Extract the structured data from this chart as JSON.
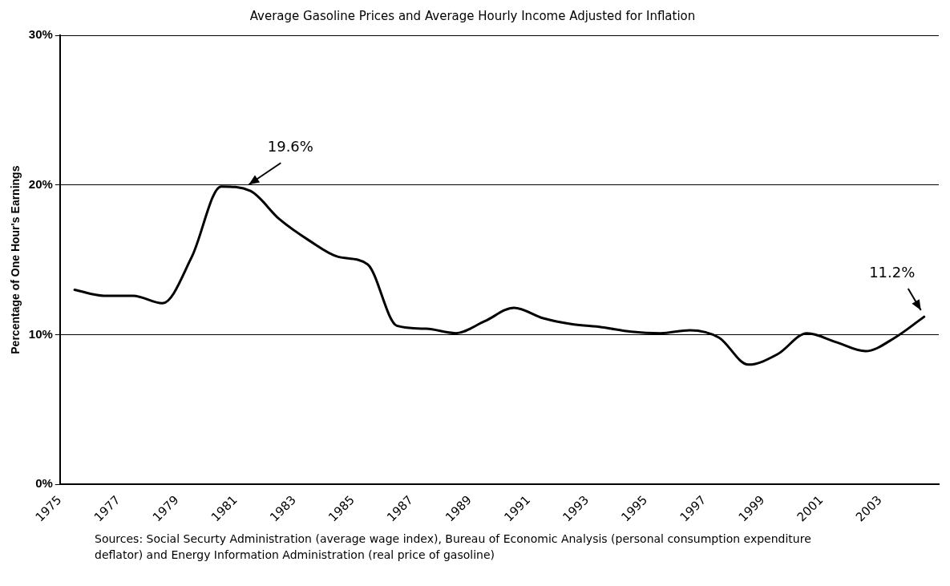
{
  "chart_data": {
    "type": "line",
    "title": "Average Gasoline Prices and Average Hourly Income Adjusted for Inflation",
    "ylabel": "Percentage of One Hour's Earnings",
    "x": [
      1975.5,
      1976.5,
      1977.5,
      1978.5,
      1979.5,
      1980.5,
      1981.5,
      1982.5,
      1983.5,
      1984.5,
      1985.5,
      1986.5,
      1987.5,
      1988.5,
      1989.5,
      1990.5,
      1991.5,
      1992.5,
      1993.5,
      1994.5,
      1995.5,
      1996.5,
      1997.5,
      1998.5,
      1999.5,
      2000.5,
      2001.5,
      2002.5,
      2003.5,
      2004.5
    ],
    "series": [
      {
        "color": "#000000",
        "values": [
          13.0,
          12.6,
          12.6,
          12.1,
          15.2,
          19.9,
          19.6,
          17.7,
          16.3,
          15.2,
          14.7,
          10.6,
          10.4,
          10.1,
          10.9,
          11.8,
          11.1,
          10.7,
          10.5,
          10.2,
          10.1,
          10.3,
          9.8,
          8.0,
          8.7,
          10.1,
          9.5,
          8.9,
          9.8,
          11.2
        ]
      }
    ],
    "xlim": [
      1975,
      2005
    ],
    "xticks": [
      1975,
      1977,
      1979,
      1981,
      1983,
      1985,
      1987,
      1989,
      1991,
      1993,
      1995,
      1997,
      1999,
      2001,
      2003
    ],
    "ylim": [
      0,
      30
    ],
    "yticks": [
      {
        "value": 0,
        "label": "0%"
      },
      {
        "value": 10,
        "label": "10%"
      },
      {
        "value": 20,
        "label": "20%"
      },
      {
        "value": 30,
        "label": "30%"
      }
    ],
    "grid": "y",
    "legend": false,
    "marker": "none",
    "line_style": "solid",
    "annotations": [
      {
        "text": "19.6%",
        "x": 1981.5,
        "y": 19.6
      },
      {
        "text": "11.2%",
        "x": 2004.5,
        "y": 11.2
      },
      "Sources: Social Securty Administration (average wage index), Bureau of Economic Analysis (personal consumption expenditure deflator) and Energy Information Administration (real price of gasoline)"
    ]
  }
}
